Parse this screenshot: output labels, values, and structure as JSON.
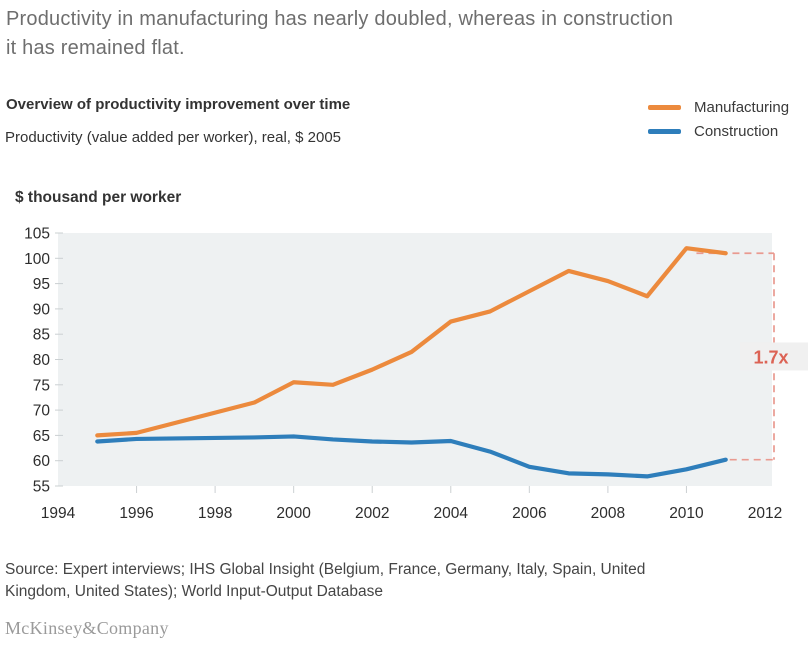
{
  "header": {
    "title": "Productivity in manufacturing has nearly doubled, whereas in construction it has remained flat."
  },
  "chart": {
    "title": "Overview of productivity improvement over time",
    "subtitle": "Productivity (value added per worker), real, $ 2005",
    "ylabel": "$ thousand per worker"
  },
  "legend": {
    "items": [
      {
        "label": "Manufacturing",
        "color": "#EC8A3D"
      },
      {
        "label": "Construction",
        "color": "#2E7EBB"
      }
    ]
  },
  "chart_data": {
    "type": "line",
    "title": "Overview of productivity improvement over time",
    "subtitle": "Productivity (value added per worker), real, $ 2005",
    "ylabel": "$ thousand per worker",
    "x": [
      1995,
      1996,
      1997,
      1998,
      1999,
      2000,
      2001,
      2002,
      2003,
      2004,
      2005,
      2006,
      2007,
      2008,
      2009,
      2010,
      2011
    ],
    "series": [
      {
        "name": "Manufacturing",
        "color": "#EC8A3D",
        "values": [
          65,
          65.5,
          67.5,
          69.5,
          71.5,
          75.5,
          75,
          78,
          81.5,
          87.5,
          89.5,
          93.5,
          97.5,
          95.5,
          92.5,
          102,
          101
        ]
      },
      {
        "name": "Construction",
        "color": "#2E7EBB",
        "values": [
          63.8,
          64.3,
          64.4,
          64.5,
          64.6,
          64.8,
          64.2,
          63.8,
          63.6,
          63.9,
          61.8,
          58.8,
          57.5,
          57.3,
          56.9,
          58.3,
          60.2
        ]
      }
    ],
    "xlim": [
      1994,
      2012
    ],
    "ylim": [
      55,
      105
    ],
    "x_ticks": [
      1994,
      1996,
      1998,
      2000,
      2002,
      2004,
      2006,
      2008,
      2010,
      2012
    ],
    "y_ticks": [
      55,
      60,
      65,
      70,
      75,
      80,
      85,
      90,
      95,
      100,
      105
    ],
    "grid": false,
    "legend_position": "top-right",
    "plot_bg": "#EEF1F2",
    "tick_color": "#CBD0D2",
    "tick_label_color": "#2D2D2D",
    "annotation": {
      "label": "1.7x",
      "text_color": "#DC6355",
      "line_color": "#E99A90",
      "box_color": "#F0F0F0"
    }
  },
  "footer": {
    "source": "Source: Expert interviews; IHS Global Insight (Belgium, France, Germany, Italy, Spain, United Kingdom, United States); World Input-Output Database",
    "brand": "McKinsey&Company"
  }
}
